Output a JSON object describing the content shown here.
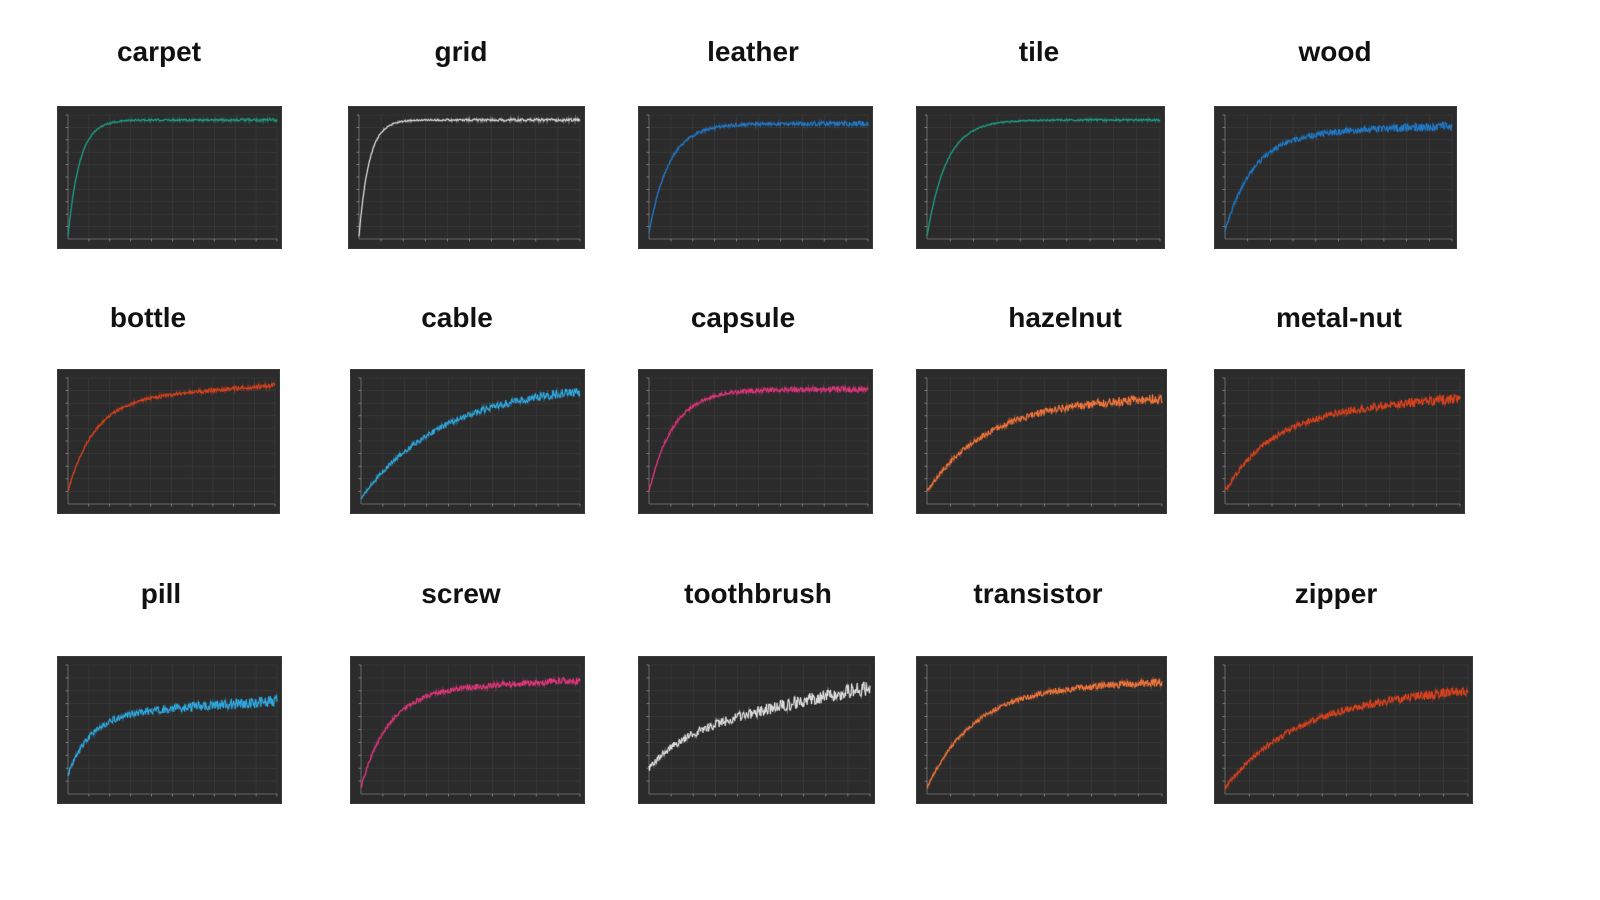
{
  "figure": {
    "background": "#ffffff",
    "panel_background": "#2b2b2b"
  },
  "chart_data": [
    {
      "type": "line",
      "title": "carpet",
      "color": "#1d9a80",
      "x_range": [
        0,
        10
      ],
      "y_range": [
        0,
        1
      ],
      "grid": true,
      "series": [
        {
          "values_profile": {
            "start": 0.02,
            "plateau": 0.96,
            "rate": 18,
            "noise": 0.012,
            "late_trend": 0.0
          }
        }
      ]
    },
    {
      "type": "line",
      "title": "grid",
      "color": "#cfcfcf",
      "x_range": [
        0,
        10
      ],
      "y_range": [
        0,
        1
      ],
      "grid": true,
      "series": [
        {
          "values_profile": {
            "start": 0.02,
            "plateau": 0.96,
            "rate": 22,
            "noise": 0.012,
            "late_trend": 0.0
          }
        }
      ]
    },
    {
      "type": "line",
      "title": "leather",
      "color": "#1f78c8",
      "x_range": [
        0,
        10
      ],
      "y_range": [
        0,
        1
      ],
      "grid": true,
      "series": [
        {
          "values_profile": {
            "start": 0.05,
            "plateau": 0.93,
            "rate": 11,
            "noise": 0.02,
            "late_trend": 0.0
          }
        }
      ]
    },
    {
      "type": "line",
      "title": "tile",
      "color": "#1d9a80",
      "x_range": [
        0,
        10
      ],
      "y_range": [
        0,
        1
      ],
      "grid": true,
      "series": [
        {
          "values_profile": {
            "start": 0.02,
            "plateau": 0.96,
            "rate": 12,
            "noise": 0.01,
            "late_trend": 0.0
          }
        }
      ]
    },
    {
      "type": "line",
      "title": "wood",
      "color": "#1f78c8",
      "x_range": [
        0,
        10
      ],
      "y_range": [
        0,
        1
      ],
      "grid": true,
      "series": [
        {
          "values_profile": {
            "start": 0.06,
            "plateau": 0.85,
            "rate": 8,
            "noise": 0.035,
            "late_trend": 0.06
          }
        }
      ]
    },
    {
      "type": "line",
      "title": "bottle",
      "color": "#d9411c",
      "x_range": [
        0,
        10
      ],
      "y_range": [
        0,
        1
      ],
      "grid": true,
      "series": [
        {
          "values_profile": {
            "start": 0.1,
            "plateau": 0.82,
            "rate": 8,
            "noise": 0.02,
            "late_trend": 0.12
          }
        }
      ]
    },
    {
      "type": "line",
      "title": "cable",
      "color": "#2fa8e0",
      "x_range": [
        0,
        10
      ],
      "y_range": [
        0,
        1
      ],
      "grid": true,
      "series": [
        {
          "values_profile": {
            "start": 0.05,
            "plateau": 0.96,
            "rate": 2.6,
            "noise": 0.035,
            "late_trend": 0.0
          }
        }
      ]
    },
    {
      "type": "line",
      "title": "capsule",
      "color": "#e0357a",
      "x_range": [
        0,
        10
      ],
      "y_range": [
        0,
        1
      ],
      "grid": true,
      "series": [
        {
          "values_profile": {
            "start": 0.1,
            "plateau": 0.91,
            "rate": 9,
            "noise": 0.025,
            "late_trend": 0.0
          }
        }
      ]
    },
    {
      "type": "line",
      "title": "hazelnut",
      "color": "#f0743a",
      "x_range": [
        0,
        10
      ],
      "y_range": [
        0,
        1
      ],
      "grid": true,
      "series": [
        {
          "values_profile": {
            "start": 0.1,
            "plateau": 0.8,
            "rate": 4,
            "noise": 0.04,
            "late_trend": 0.05
          }
        }
      ]
    },
    {
      "type": "line",
      "title": "metal-nut",
      "color": "#d9411c",
      "x_range": [
        0,
        10
      ],
      "y_range": [
        0,
        1
      ],
      "grid": true,
      "series": [
        {
          "values_profile": {
            "start": 0.1,
            "plateau": 0.72,
            "rate": 5,
            "noise": 0.04,
            "late_trend": 0.12
          }
        }
      ]
    },
    {
      "type": "line",
      "title": "pill",
      "color": "#2fa8e0",
      "x_range": [
        0,
        10
      ],
      "y_range": [
        0,
        1
      ],
      "grid": true,
      "series": [
        {
          "values_profile": {
            "start": 0.15,
            "plateau": 0.62,
            "rate": 9,
            "noise": 0.045,
            "late_trend": 0.1
          }
        }
      ]
    },
    {
      "type": "line",
      "title": "screw",
      "color": "#e0357a",
      "x_range": [
        0,
        10
      ],
      "y_range": [
        0,
        1
      ],
      "grid": true,
      "series": [
        {
          "values_profile": {
            "start": 0.05,
            "plateau": 0.8,
            "rate": 8,
            "noise": 0.03,
            "late_trend": 0.08
          }
        }
      ]
    },
    {
      "type": "line",
      "title": "toothbrush",
      "color": "#d8d8d8",
      "x_range": [
        0,
        10
      ],
      "y_range": [
        0,
        1
      ],
      "grid": true,
      "series": [
        {
          "values_profile": {
            "start": 0.2,
            "plateau": 0.48,
            "rate": 6,
            "noise": 0.06,
            "late_trend": 0.35
          }
        }
      ]
    },
    {
      "type": "line",
      "title": "transistor",
      "color": "#f0743a",
      "x_range": [
        0,
        10
      ],
      "y_range": [
        0,
        1
      ],
      "grid": true,
      "series": [
        {
          "values_profile": {
            "start": 0.05,
            "plateau": 0.82,
            "rate": 5,
            "noise": 0.03,
            "late_trend": 0.05
          }
        }
      ]
    },
    {
      "type": "line",
      "title": "zipper",
      "color": "#d9411c",
      "x_range": [
        0,
        10
      ],
      "y_range": [
        0,
        1
      ],
      "grid": true,
      "series": [
        {
          "values_profile": {
            "start": 0.05,
            "plateau": 0.72,
            "rate": 3.5,
            "noise": 0.04,
            "late_trend": 0.1
          }
        }
      ]
    }
  ]
}
